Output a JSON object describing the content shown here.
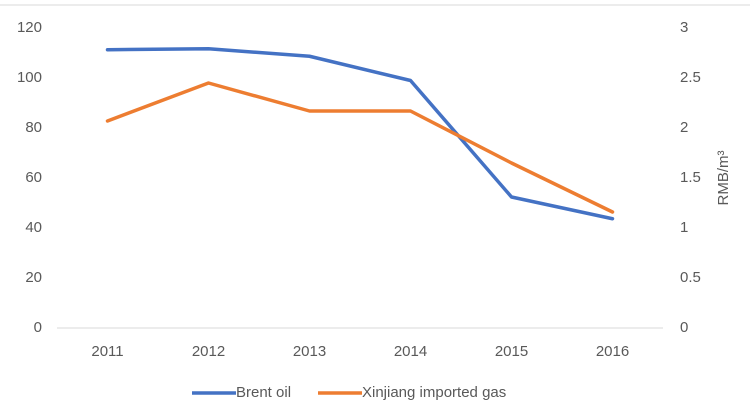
{
  "chart_data": {
    "type": "line",
    "categories": [
      "2011",
      "2012",
      "2013",
      "2014",
      "2015",
      "2016"
    ],
    "series": [
      {
        "name": "Brent oil",
        "color": "#4472c4",
        "values": [
          111.3,
          111.7,
          108.7,
          99,
          52.4,
          43.7
        ]
      },
      {
        "name": "Xinjiang imported gas",
        "color": "#ed7d31",
        "axis": "y2",
        "values": [
          2.07,
          2.45,
          2.17,
          2.17,
          1.65,
          1.16
        ]
      }
    ],
    "ylim": [
      0,
      120
    ],
    "yticks": [
      0,
      20,
      40,
      60,
      80,
      100,
      120
    ],
    "y2lim": [
      0,
      3
    ],
    "y2ticks": [
      0,
      0.5,
      1,
      1.5,
      2,
      2.5,
      3
    ],
    "y2label": "RMB/m³",
    "grid": false,
    "legend": "bottom"
  }
}
